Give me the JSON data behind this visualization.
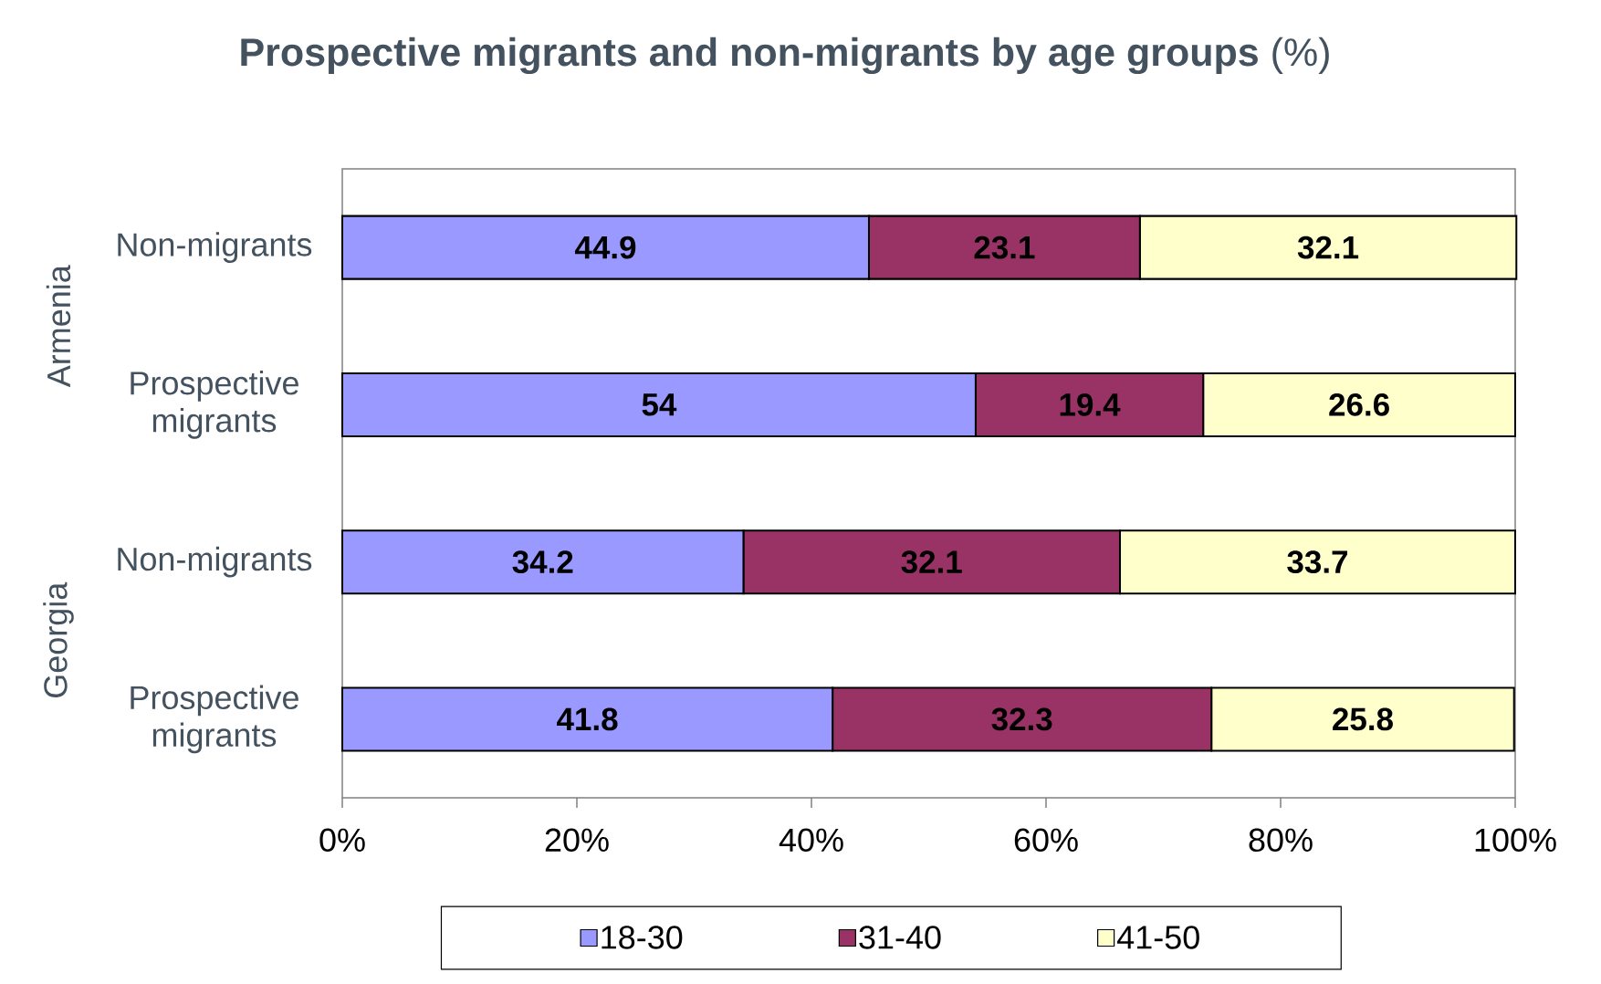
{
  "chart_data": {
    "type": "bar",
    "orientation": "horizontal",
    "stacked": true,
    "title": "**Prospective migrants and non-migrants by age groups** (%)",
    "categories": [
      "Non-migrants",
      "Prospective migrants",
      "Non-migrants",
      "Prospective migrants"
    ],
    "series": [
      {
        "name": "18-30",
        "color": "#9999ff",
        "values": [
          44.9,
          54,
          34.2,
          41.8
        ]
      },
      {
        "name": "31-40",
        "color": "#993366",
        "values": [
          23.1,
          19.4,
          32.1,
          32.3
        ]
      },
      {
        "name": "41-50",
        "color": "#ffffcc",
        "values": [
          32.1,
          26.6,
          33.7,
          25.8
        ]
      }
    ],
    "xlim": [
      0,
      100
    ],
    "xticks": [
      {
        "value": 0,
        "label": "0%"
      },
      {
        "value": 20,
        "label": "20%"
      },
      {
        "value": 40,
        "label": "40%"
      },
      {
        "value": 60,
        "label": "60%"
      },
      {
        "value": 80,
        "label": "80%"
      },
      {
        "value": 100,
        "label": "100%"
      }
    ],
    "annotations": [
      "Armenia",
      "Georgia"
    ],
    "data_labels": true,
    "legend": "bottom"
  }
}
